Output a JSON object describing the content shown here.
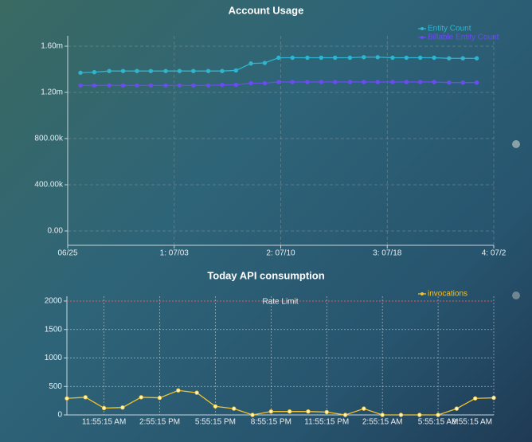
{
  "chart_data": [
    {
      "type": "line",
      "title": "Account Usage",
      "legend": "top-right",
      "grid": true,
      "xlim": [
        0,
        4
      ],
      "xticks": [
        {
          "value": 0,
          "label": "06/25"
        },
        {
          "value": 1,
          "label": "1: 07/03"
        },
        {
          "value": 2,
          "label": "2: 07/10"
        },
        {
          "value": 3,
          "label": "3: 07/18"
        },
        {
          "value": 4,
          "label": "4: 07/2"
        }
      ],
      "ylim": [
        0,
        1600000
      ],
      "yticks": [
        {
          "value": 0,
          "label": "0.00"
        },
        {
          "value": 400000,
          "label": "400.00k"
        },
        {
          "value": 800000,
          "label": "800.00k"
        },
        {
          "value": 1200000,
          "label": "1.20m"
        },
        {
          "value": 1600000,
          "label": "1.60m"
        }
      ],
      "x": [
        0.12,
        0.25,
        0.39,
        0.52,
        0.65,
        0.78,
        0.92,
        1.05,
        1.18,
        1.32,
        1.45,
        1.58,
        1.72,
        1.85,
        1.98,
        2.11,
        2.25,
        2.38,
        2.51,
        2.65,
        2.78,
        2.91,
        3.05,
        3.18,
        3.31,
        3.44,
        3.58,
        3.71,
        3.84
      ],
      "series": [
        {
          "name": "Entity Count",
          "color": "#2fb5cf",
          "values": [
            1370000,
            1375000,
            1385000,
            1385000,
            1385000,
            1385000,
            1385000,
            1385000,
            1385000,
            1385000,
            1385000,
            1390000,
            1450000,
            1455000,
            1500000,
            1500000,
            1500000,
            1500000,
            1500000,
            1500000,
            1505000,
            1505000,
            1500000,
            1500000,
            1500000,
            1500000,
            1495000,
            1495000,
            1495000
          ]
        },
        {
          "name": "Billable Entity Count",
          "color": "#6a4cf0",
          "values": [
            1260000,
            1260000,
            1260000,
            1260000,
            1260000,
            1260000,
            1260000,
            1260000,
            1260000,
            1260000,
            1265000,
            1265000,
            1280000,
            1280000,
            1290000,
            1290000,
            1290000,
            1290000,
            1290000,
            1290000,
            1290000,
            1290000,
            1290000,
            1290000,
            1290000,
            1290000,
            1285000,
            1285000,
            1285000
          ]
        }
      ]
    },
    {
      "type": "line",
      "title": "Today API consumption",
      "legend": "top-right",
      "grid": true,
      "categories": [
        null,
        null,
        "11:55:15 AM",
        null,
        null,
        "2:55:15 PM",
        null,
        null,
        "5:55:15 PM",
        null,
        null,
        "8:55:15 PM",
        null,
        null,
        "11:55:15 PM",
        null,
        null,
        "2:55:15 AM",
        null,
        null,
        "5:55:15 AM",
        null,
        null,
        "8:55:15 AM"
      ],
      "ylim": [
        0,
        2000
      ],
      "yticks": [
        0,
        500,
        1000,
        1500,
        2000
      ],
      "annotations": [
        {
          "label": "Rate Limit",
          "value": 2000,
          "color": "#e05a5a"
        }
      ],
      "series": [
        {
          "name": "invocations",
          "color": "#f2c12e",
          "values": [
            290,
            310,
            120,
            130,
            310,
            300,
            430,
            390,
            150,
            110,
            0,
            60,
            60,
            60,
            50,
            0,
            110,
            0,
            0,
            0,
            0,
            110,
            290,
            300
          ]
        }
      ]
    }
  ]
}
